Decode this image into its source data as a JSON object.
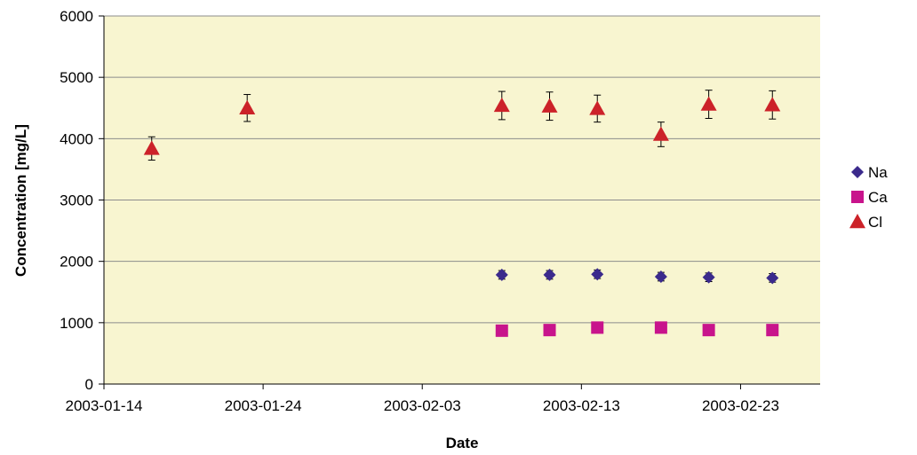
{
  "chart_data": {
    "type": "scatter",
    "title": "",
    "xlabel": "Date",
    "ylabel": "Concentration [mg/L]",
    "xlim": [
      "2003-01-14",
      "2003-02-28"
    ],
    "ylim": [
      0,
      6000
    ],
    "x_ticks": [
      "2003-01-14",
      "2003-01-24",
      "2003-02-03",
      "2003-02-13",
      "2003-02-23"
    ],
    "y_ticks": [
      0,
      1000,
      2000,
      3000,
      4000,
      5000,
      6000
    ],
    "grid": "horizontal",
    "legend_position": "right",
    "plot_background": "#f8f5d0",
    "series": [
      {
        "name": "Na",
        "marker": "diamond",
        "color": "#3b2a8c",
        "x": [
          "2003-02-08",
          "2003-02-11",
          "2003-02-14",
          "2003-02-18",
          "2003-02-21",
          "2003-02-25"
        ],
        "y": [
          1780,
          1780,
          1790,
          1750,
          1740,
          1730
        ],
        "error": [
          70,
          70,
          70,
          70,
          70,
          70
        ]
      },
      {
        "name": "Ca",
        "marker": "square",
        "color": "#c8148c",
        "x": [
          "2003-02-08",
          "2003-02-11",
          "2003-02-14",
          "2003-02-18",
          "2003-02-21",
          "2003-02-25"
        ],
        "y": [
          870,
          880,
          920,
          920,
          880,
          880
        ],
        "error": [
          0,
          0,
          0,
          0,
          0,
          0
        ]
      },
      {
        "name": "Cl",
        "marker": "triangle",
        "color": "#cc2229",
        "x": [
          "2003-01-17",
          "2003-01-23",
          "2003-02-08",
          "2003-02-11",
          "2003-02-14",
          "2003-02-18",
          "2003-02-21",
          "2003-02-25"
        ],
        "y": [
          3840,
          4500,
          4540,
          4530,
          4490,
          4070,
          4560,
          4550
        ],
        "error": [
          190,
          220,
          230,
          230,
          220,
          200,
          230,
          230
        ]
      }
    ]
  }
}
